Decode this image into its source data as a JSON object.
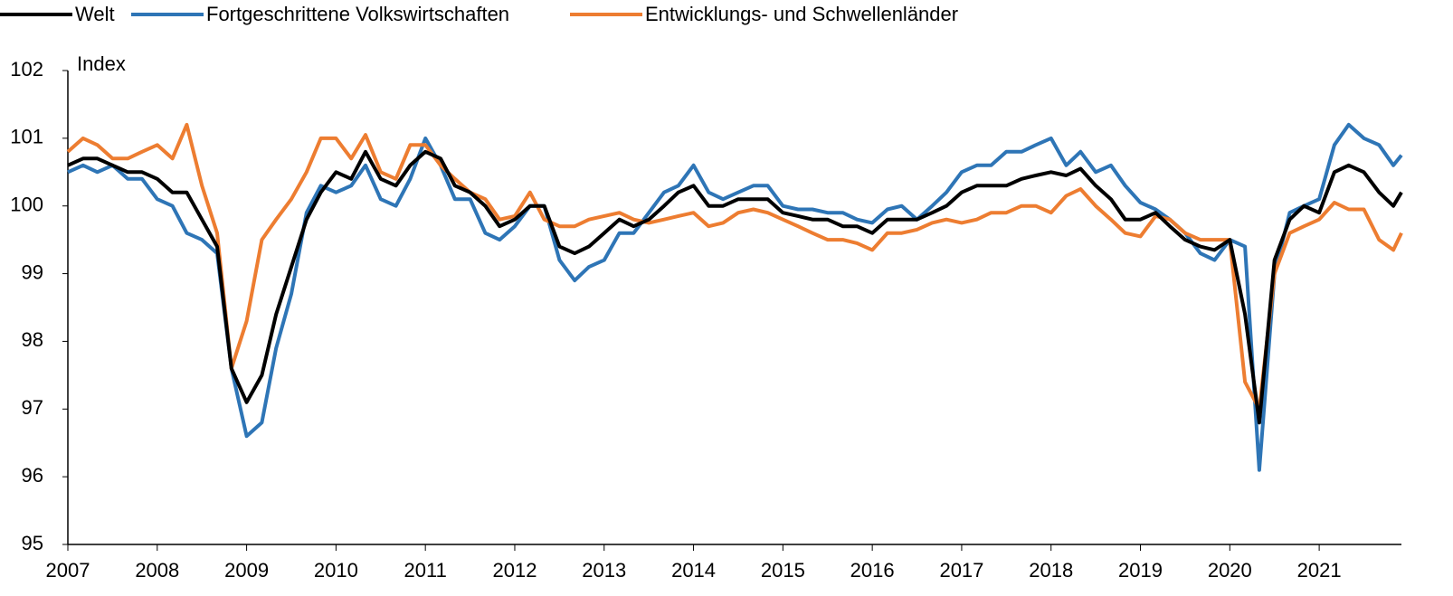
{
  "chart_data": {
    "type": "line",
    "y_label": "Index",
    "x": [
      2007,
      2007.17,
      2007.33,
      2007.5,
      2007.67,
      2007.83,
      2008,
      2008.17,
      2008.33,
      2008.5,
      2008.67,
      2008.83,
      2009,
      2009.17,
      2009.33,
      2009.5,
      2009.67,
      2009.83,
      2010,
      2010.17,
      2010.33,
      2010.5,
      2010.67,
      2010.83,
      2011,
      2011.17,
      2011.33,
      2011.5,
      2011.67,
      2011.83,
      2012,
      2012.17,
      2012.33,
      2012.5,
      2012.67,
      2012.83,
      2013,
      2013.17,
      2013.33,
      2013.5,
      2013.67,
      2013.83,
      2014,
      2014.17,
      2014.33,
      2014.5,
      2014.67,
      2014.83,
      2015,
      2015.17,
      2015.33,
      2015.5,
      2015.67,
      2015.83,
      2016,
      2016.17,
      2016.33,
      2016.5,
      2016.67,
      2016.83,
      2017,
      2017.17,
      2017.33,
      2017.5,
      2017.67,
      2017.83,
      2018,
      2018.17,
      2018.33,
      2018.5,
      2018.67,
      2018.83,
      2019,
      2019.17,
      2019.33,
      2019.5,
      2019.67,
      2019.83,
      2020,
      2020.17,
      2020.33,
      2020.5,
      2020.67,
      2020.83,
      2021,
      2021.17,
      2021.33,
      2021.5,
      2021.67,
      2021.83,
      2021.92
    ],
    "series": [
      {
        "name": "Welt",
        "color": "#000000",
        "values": [
          100.6,
          100.7,
          100.7,
          100.6,
          100.5,
          100.5,
          100.4,
          100.2,
          100.2,
          99.8,
          99.4,
          97.6,
          97.1,
          97.5,
          98.4,
          99.1,
          99.8,
          100.2,
          100.5,
          100.4,
          100.8,
          100.4,
          100.3,
          100.6,
          100.8,
          100.7,
          100.3,
          100.2,
          100.0,
          99.7,
          99.8,
          100.0,
          100.0,
          99.4,
          99.3,
          99.4,
          99.6,
          99.8,
          99.7,
          99.8,
          100.0,
          100.2,
          100.3,
          100.0,
          100.0,
          100.1,
          100.1,
          100.1,
          99.9,
          99.85,
          99.8,
          99.8,
          99.7,
          99.7,
          99.6,
          99.8,
          99.8,
          99.8,
          99.9,
          100.0,
          100.2,
          100.3,
          100.3,
          100.3,
          100.4,
          100.45,
          100.5,
          100.45,
          100.55,
          100.3,
          100.1,
          99.8,
          99.8,
          99.9,
          99.7,
          99.5,
          99.4,
          99.35,
          99.5,
          98.4,
          96.8,
          99.2,
          99.8,
          100.0,
          99.9,
          100.5,
          100.6,
          100.5,
          100.2,
          100.0,
          100.2
        ]
      },
      {
        "name": "Fortgeschrittene Volkswirtschaften",
        "color": "#2e75b6",
        "values": [
          100.5,
          100.6,
          100.5,
          100.6,
          100.4,
          100.4,
          100.1,
          100.0,
          99.6,
          99.5,
          99.3,
          97.6,
          96.6,
          96.8,
          97.9,
          98.7,
          99.9,
          100.3,
          100.2,
          100.3,
          100.6,
          100.1,
          100.0,
          100.4,
          101.0,
          100.6,
          100.1,
          100.1,
          99.6,
          99.5,
          99.7,
          100.0,
          100.0,
          99.2,
          98.9,
          99.1,
          99.2,
          99.6,
          99.6,
          99.9,
          100.2,
          100.3,
          100.6,
          100.2,
          100.1,
          100.2,
          100.3,
          100.3,
          100.0,
          99.95,
          99.95,
          99.9,
          99.9,
          99.8,
          99.75,
          99.95,
          100.0,
          99.8,
          100.0,
          100.2,
          100.5,
          100.6,
          100.6,
          100.8,
          100.8,
          100.9,
          101.0,
          100.6,
          100.8,
          100.5,
          100.6,
          100.3,
          100.05,
          99.95,
          99.8,
          99.6,
          99.3,
          99.2,
          99.5,
          99.4,
          96.1,
          99.0,
          99.9,
          100.0,
          100.1,
          100.9,
          101.2,
          101.0,
          100.9,
          100.6,
          100.75
        ]
      },
      {
        "name": "Entwicklungs- und Schwellenländer",
        "color": "#ed7d31",
        "values": [
          100.8,
          101.0,
          100.9,
          100.7,
          100.7,
          100.8,
          100.9,
          100.7,
          101.2,
          100.3,
          99.6,
          97.6,
          98.3,
          99.5,
          99.8,
          100.1,
          100.5,
          101.0,
          101.0,
          100.7,
          101.05,
          100.5,
          100.4,
          100.9,
          100.9,
          100.6,
          100.4,
          100.2,
          100.1,
          99.8,
          99.85,
          100.2,
          99.8,
          99.7,
          99.7,
          99.8,
          99.85,
          99.9,
          99.8,
          99.75,
          99.8,
          99.85,
          99.9,
          99.7,
          99.75,
          99.9,
          99.95,
          99.9,
          99.8,
          99.7,
          99.6,
          99.5,
          99.5,
          99.45,
          99.35,
          99.6,
          99.6,
          99.65,
          99.75,
          99.8,
          99.75,
          99.8,
          99.9,
          99.9,
          100.0,
          100.0,
          99.9,
          100.15,
          100.25,
          100.0,
          99.8,
          99.6,
          99.55,
          99.85,
          99.8,
          99.6,
          99.5,
          99.5,
          99.5,
          97.4,
          97.0,
          99.0,
          99.6,
          99.7,
          99.8,
          100.05,
          99.95,
          99.95,
          99.5,
          99.35,
          99.6
        ]
      }
    ],
    "xlim": [
      2007,
      2021.92
    ],
    "xticks": [
      2007,
      2008,
      2009,
      2010,
      2011,
      2012,
      2013,
      2014,
      2015,
      2016,
      2017,
      2018,
      2019,
      2020,
      2021
    ],
    "ylim": [
      95,
      102
    ],
    "yticks": [
      95,
      96,
      97,
      98,
      99,
      100,
      101,
      102
    ],
    "grid": false,
    "legend": "top"
  }
}
